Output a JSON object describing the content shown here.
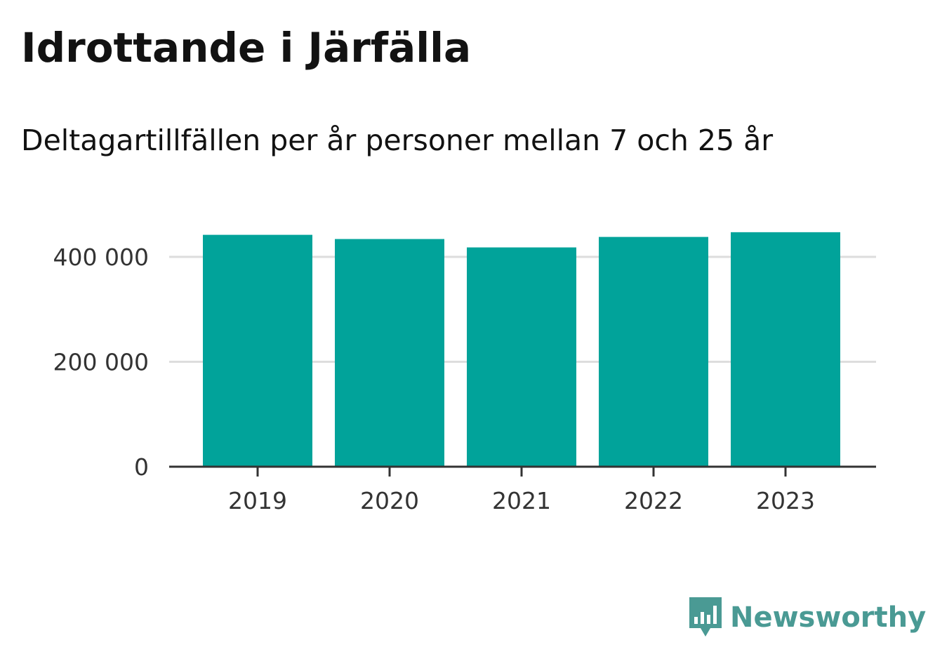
{
  "colors": {
    "bar": "#01a39a",
    "brand": "#4a9a94",
    "grid": "#dddddd",
    "axis": "#333333"
  },
  "chart_data": {
    "type": "bar",
    "title": "Idrottande i Järfälla",
    "subtitle": "Deltagartillfällen per år personer mellan 7 och 25 år",
    "categories": [
      "2019",
      "2020",
      "2021",
      "2022",
      "2023"
    ],
    "values": [
      442000,
      434000,
      418000,
      438000,
      447000
    ],
    "xlabel": "",
    "ylabel": "",
    "ylim": [
      0,
      450000
    ],
    "yticks": [
      0,
      200000,
      400000
    ],
    "ytick_labels": [
      "0",
      "200 000",
      "400 000"
    ],
    "grid": true,
    "legend": "none"
  },
  "brand": {
    "name": "Newsworthy",
    "icon": "newsworthy-logo-icon"
  }
}
